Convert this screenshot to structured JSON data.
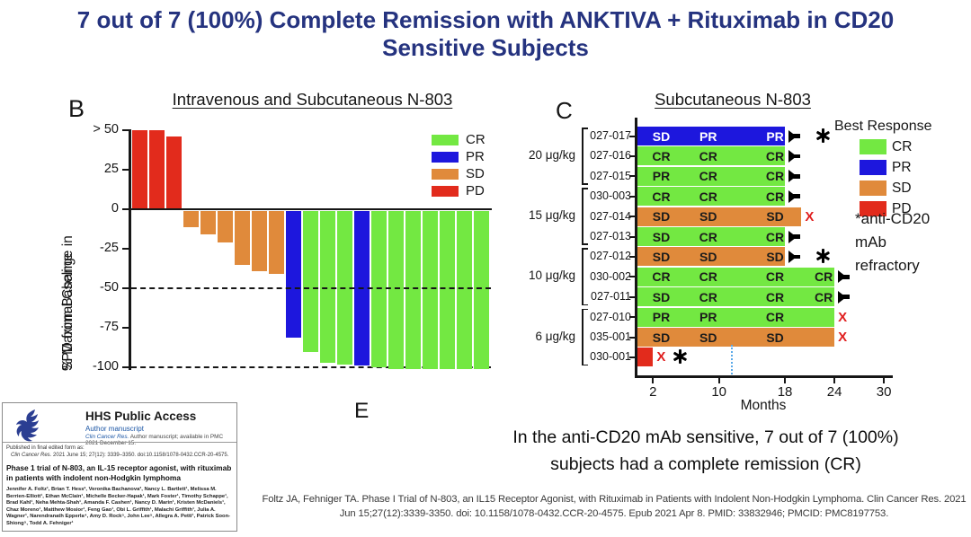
{
  "slide": {
    "title_line1": "7 out of 7 (100%) Complete Remission with ANKTIVA + Rituximab in CD20",
    "title_line2": "Sensitive Subjects",
    "panel_e_label": "E",
    "conclusion_line1": "In the anti-CD20 mAb sensitive, 7 out of 7 (100%)",
    "conclusion_line2": "subjects had a complete remission (CR)",
    "citation_line1": "Foltz JA, Fehniger TA. Phase I Trial of N-803, an IL15 Receptor Agonist, with Rituximab in Patients with Indolent Non-Hodgkin Lymphoma. Clin Cancer Res. 2021",
    "citation_line2": "Jun 15;27(12):3339-3350. doi: 10.1158/1078-0432.CCR-20-4575. Epub 2021 Apr 8. PMID: 33832946; PMCID: PMC8197753."
  },
  "colors": {
    "CR": "#73e842",
    "PR": "#1d17dd",
    "SD": "#e08a3b",
    "PD": "#e22b1c",
    "x_mark": "#e01f1f",
    "milestone": "#5aa9e8",
    "title": "#25337f",
    "axis": "#161616"
  },
  "chart_data": [
    {
      "type": "bar",
      "panel_label": "B",
      "title": "Intravenous and Subcutaneous N-803",
      "ylabel_line1": "% Maximal Change in",
      "ylabel_line2": "SPD from Baseline",
      "ylim": [
        -100,
        55
      ],
      "ytick_values": [
        50,
        25,
        0,
        -25,
        -50,
        -75,
        -100
      ],
      "ytick_labels": [
        "> 50",
        "25",
        "0",
        "-25",
        "-50",
        "-75",
        "-100"
      ],
      "reference_lines": [
        -50,
        -100
      ],
      "legend": [
        "CR",
        "PR",
        "SD",
        "PD"
      ],
      "bars": [
        {
          "value": 50,
          "response": "PD"
        },
        {
          "value": 50,
          "response": "PD"
        },
        {
          "value": 46,
          "response": "PD"
        },
        {
          "value": -10,
          "response": "SD"
        },
        {
          "value": -15,
          "response": "SD"
        },
        {
          "value": -20,
          "response": "SD"
        },
        {
          "value": -34,
          "response": "SD"
        },
        {
          "value": -38,
          "response": "SD"
        },
        {
          "value": -40,
          "response": "SD"
        },
        {
          "value": -80,
          "response": "PR"
        },
        {
          "value": -89,
          "response": "CR"
        },
        {
          "value": -96,
          "response": "CR"
        },
        {
          "value": -97,
          "response": "CR"
        },
        {
          "value": -98,
          "response": "PR"
        },
        {
          "value": -99,
          "response": "CR"
        },
        {
          "value": -100,
          "response": "CR"
        },
        {
          "value": -100,
          "response": "CR"
        },
        {
          "value": -100,
          "response": "CR"
        },
        {
          "value": -100,
          "response": "CR"
        },
        {
          "value": -100,
          "response": "CR"
        },
        {
          "value": -100,
          "response": "CR"
        }
      ]
    },
    {
      "type": "bar",
      "panel_label": "C",
      "title": "Subcutaneous N-803",
      "xlabel": "Months",
      "xticks": [
        2,
        10,
        18,
        24,
        30
      ],
      "xlim": [
        0,
        31
      ],
      "legend_title": "Best Response",
      "legend": [
        "CR",
        "PR",
        "SD",
        "PD"
      ],
      "footnote_line1": "*anti-CD20",
      "footnote_line2": "mAb",
      "footnote_line3": "refractory",
      "milestone_month": 11.5,
      "dose_groups": [
        {
          "dose": "20 μg/kg",
          "subjects": [
            "027-017",
            "027-016",
            "027-015"
          ]
        },
        {
          "dose": "15 μg/kg",
          "subjects": [
            "030-003",
            "027-014",
            "027-013"
          ]
        },
        {
          "dose": "10 μg/kg",
          "subjects": [
            "027-012",
            "030-002",
            "027-011"
          ]
        },
        {
          "dose": "6 μg/kg",
          "subjects": [
            "027-010",
            "035-001",
            "030-001"
          ]
        }
      ],
      "rows": [
        {
          "subject": "027-017",
          "color": "PR",
          "end_month": 18,
          "labels": [
            "SD",
            "PR",
            "PR"
          ],
          "label_color": "#ffffff",
          "arrow": true,
          "asterisk": true,
          "x_mark": false
        },
        {
          "subject": "027-016",
          "color": "CR",
          "end_month": 18,
          "labels": [
            "CR",
            "CR",
            "CR"
          ],
          "arrow": true,
          "asterisk": false,
          "x_mark": false
        },
        {
          "subject": "027-015",
          "color": "CR",
          "end_month": 18,
          "labels": [
            "PR",
            "CR",
            "CR"
          ],
          "arrow": true,
          "asterisk": false,
          "x_mark": false
        },
        {
          "subject": "030-003",
          "color": "CR",
          "end_month": 18,
          "labels": [
            "CR",
            "CR",
            "CR"
          ],
          "arrow": true,
          "asterisk": false,
          "x_mark": false
        },
        {
          "subject": "027-014",
          "color": "SD",
          "end_month": 20,
          "labels": [
            "SD",
            "SD",
            "SD"
          ],
          "arrow": false,
          "asterisk": false,
          "x_mark": true
        },
        {
          "subject": "027-013",
          "color": "CR",
          "end_month": 18,
          "labels": [
            "SD",
            "CR",
            "CR"
          ],
          "arrow": true,
          "asterisk": false,
          "x_mark": false
        },
        {
          "subject": "027-012",
          "color": "SD",
          "end_month": 18,
          "labels": [
            "SD",
            "SD",
            "SD"
          ],
          "arrow": true,
          "asterisk": true,
          "x_mark": false
        },
        {
          "subject": "030-002",
          "color": "CR",
          "end_month": 24,
          "labels": [
            "CR",
            "CR",
            "CR",
            "CR"
          ],
          "arrow": true,
          "asterisk": false,
          "x_mark": false
        },
        {
          "subject": "027-011",
          "color": "CR",
          "end_month": 24,
          "labels": [
            "SD",
            "CR",
            "CR",
            "CR"
          ],
          "arrow": true,
          "asterisk": false,
          "x_mark": false
        },
        {
          "subject": "027-010",
          "color": "CR",
          "end_month": 24,
          "labels": [
            "PR",
            "PR",
            "CR"
          ],
          "arrow": false,
          "asterisk": false,
          "x_mark": true
        },
        {
          "subject": "035-001",
          "color": "SD",
          "end_month": 24,
          "labels": [
            "SD",
            "SD",
            "SD"
          ],
          "arrow": false,
          "asterisk": false,
          "x_mark": true
        },
        {
          "subject": "030-001",
          "color": "PD",
          "end_month": 2,
          "labels": [],
          "arrow": false,
          "asterisk": true,
          "x_mark": true
        }
      ]
    }
  ],
  "hhs_box": {
    "header_title": "HHS Public Access",
    "header_sub": "Author manuscript",
    "header_avail_italic": "Clin Cancer Res.",
    "header_avail_rest": " Author manuscript; available in PMC 2021 December 15.",
    "published_line": "Published in final edited form as:",
    "published_ref_italic": "Clin Cancer Res.",
    "published_ref_rest": " 2021 June 15; 27(12): 3339–3350. doi:10.1158/1078-0432.CCR-20-4575.",
    "paper_title": "Phase 1 trial of N-803, an IL-15 receptor agonist, with rituximab in patients with indolent non-Hodgkin lymphoma",
    "authors": "Jennifer A. Foltz¹, Brian T. Hess², Veronika Bachanova³, Nancy L. Bartlett¹, Melissa M. Berrien-Elliott¹, Ethan McClain¹, Michelle Becker-Hapak¹, Mark Foster¹, Timothy Schappe¹, Brad Kahl¹, Neha Mehta-Shah¹, Amanda F. Cashen¹, Nancy D. Marin¹, Kristen McDaniels¹, Chaz Moreno¹, Matthew Mosior¹, Feng Gao¹, Obi L. Griffith¹, Malachi Griffith¹, Julia A. Wagner¹, Narendranath Epperla⁴, Amy D. Rock⁵, John Lee⁵, Allegra A. Petti¹, Patrick Soon-Shiong⁵, Todd A. Fehniger¹"
  }
}
